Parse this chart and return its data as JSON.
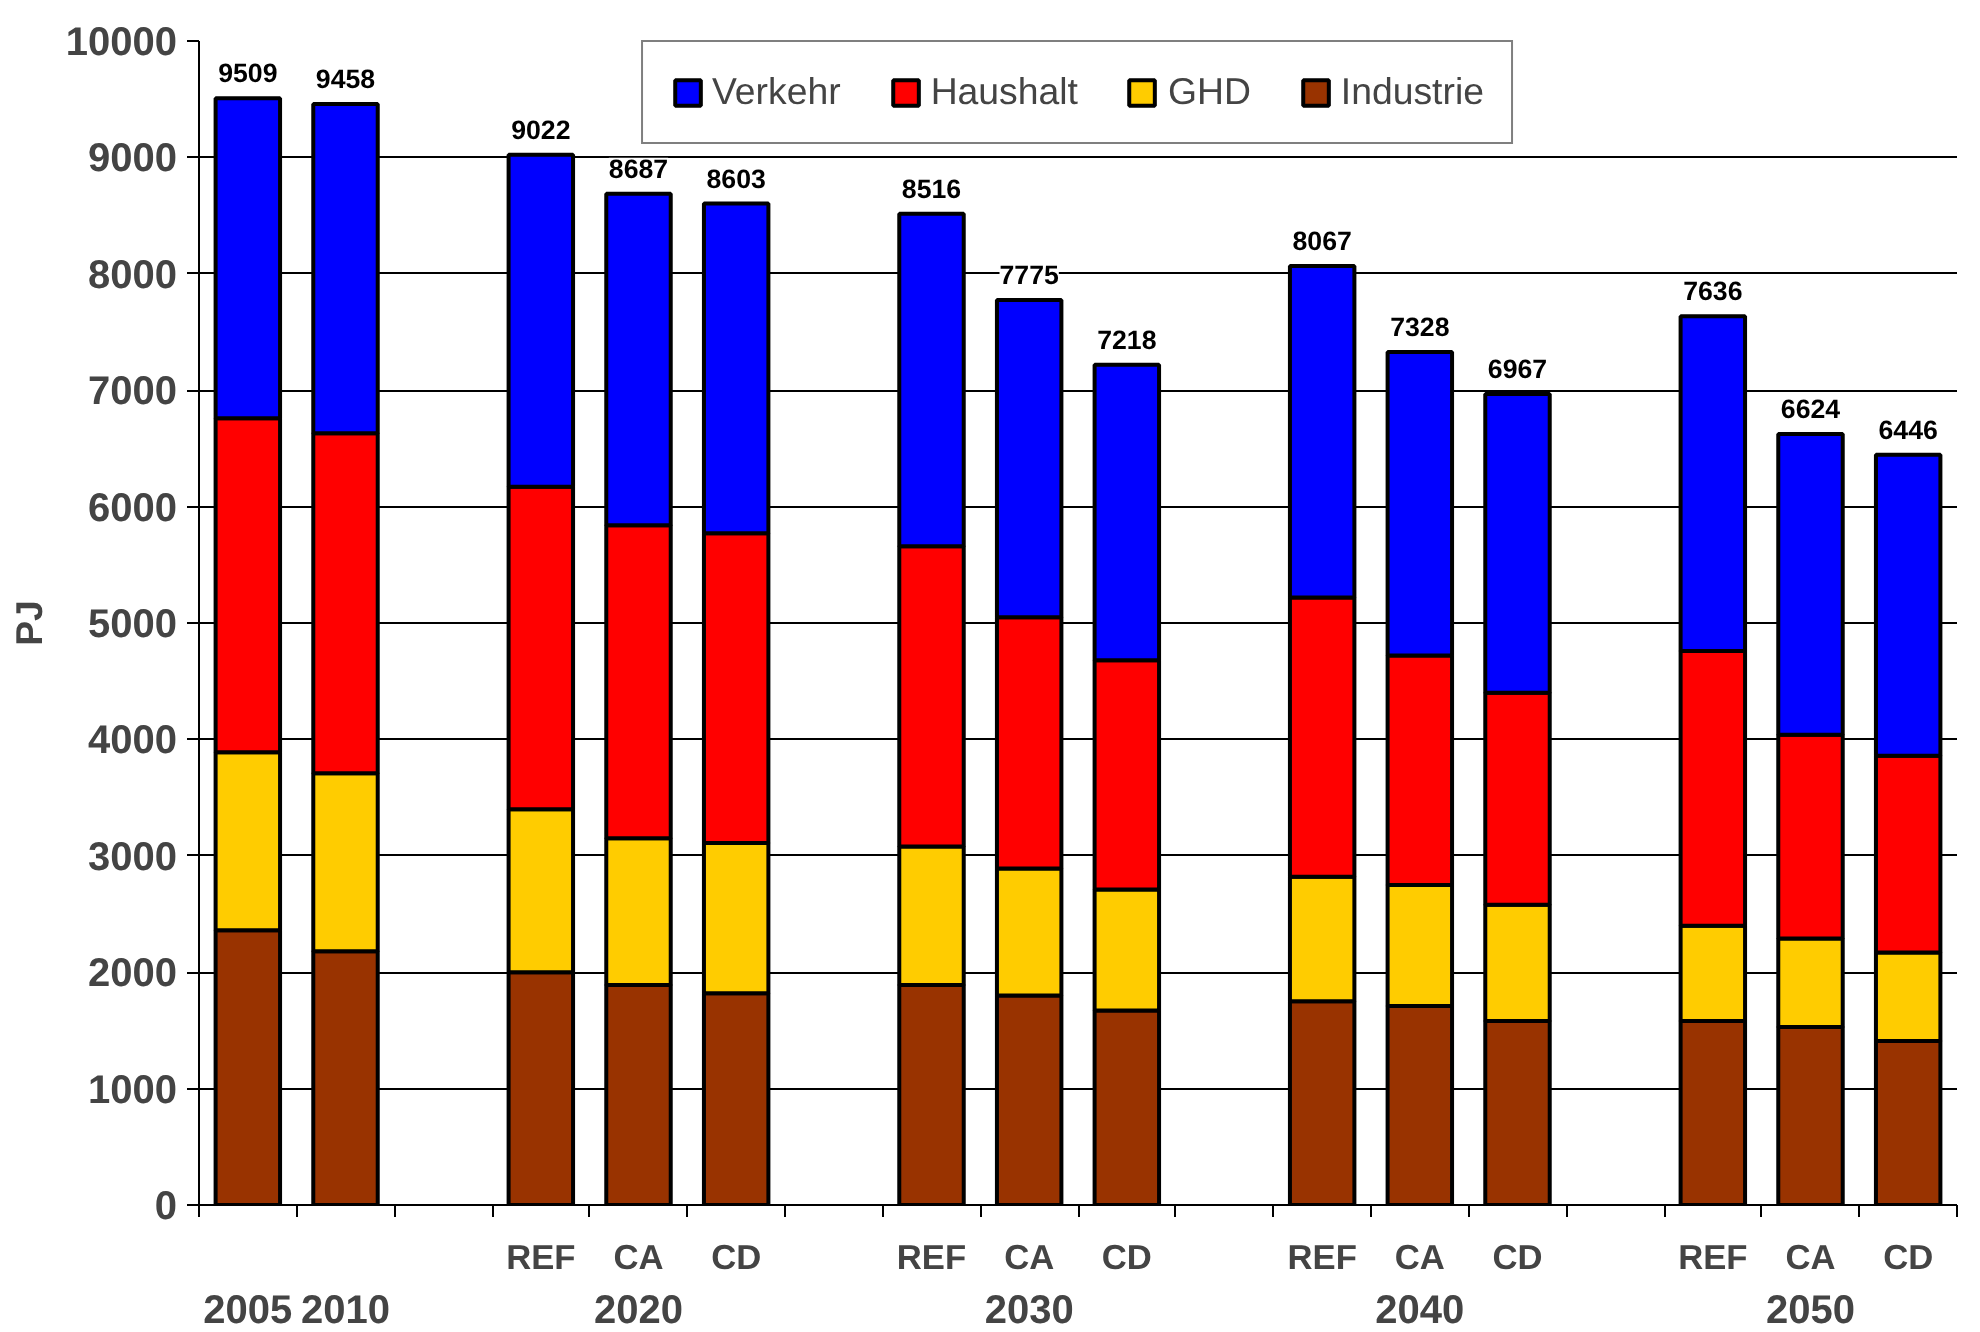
{
  "chart_data": {
    "type": "bar",
    "stacked": true,
    "ylabel": "PJ",
    "categories": [
      null,
      null,
      null,
      "REF",
      "CA",
      "CD",
      null,
      "REF",
      "CA",
      "CD",
      null,
      "REF",
      "CA",
      "CD",
      null,
      "REF",
      "CA",
      "CD"
    ],
    "annotations": [
      "2005",
      "2010",
      "2020",
      "2030",
      "2040",
      "2050"
    ],
    "series": [
      {
        "name": "Industrie",
        "color": "#993300",
        "values": [
          2360,
          2180,
          null,
          2000,
          1890,
          1820,
          null,
          1890,
          1800,
          1670,
          null,
          1750,
          1710,
          1580,
          null,
          1580,
          1530,
          1410
        ]
      },
      {
        "name": "GHD",
        "color": "#ffcc00",
        "values": [
          1530,
          1530,
          null,
          1400,
          1260,
          1290,
          null,
          1190,
          1090,
          1040,
          null,
          1070,
          1040,
          1000,
          null,
          820,
          760,
          760
        ]
      },
      {
        "name": "Haushalt",
        "color": "#ff0000",
        "values": [
          2870,
          2920,
          null,
          2770,
          2690,
          2660,
          null,
          2580,
          2160,
          1970,
          null,
          2400,
          1970,
          1820,
          null,
          2360,
          1750,
          1690
        ]
      },
      {
        "name": "Verkehr",
        "color": "#0000ff",
        "values": [
          2749,
          2828,
          null,
          2852,
          2847,
          2833,
          null,
          2856,
          2725,
          2538,
          null,
          2847,
          2608,
          2567,
          null,
          2876,
          2584,
          2586
        ]
      }
    ],
    "totals": [
      "9509",
      "9458",
      null,
      "9022",
      "8687",
      "8603",
      null,
      "8516",
      "7775",
      "7218",
      null,
      "8067",
      "7328",
      "6967",
      null,
      "7636",
      "6624",
      "6446"
    ],
    "ylim": [
      0,
      10000
    ],
    "yticks": [
      0,
      1000,
      2000,
      3000,
      4000,
      5000,
      6000,
      7000,
      8000,
      9000,
      10000
    ],
    "grid": "y",
    "legend": "top"
  }
}
